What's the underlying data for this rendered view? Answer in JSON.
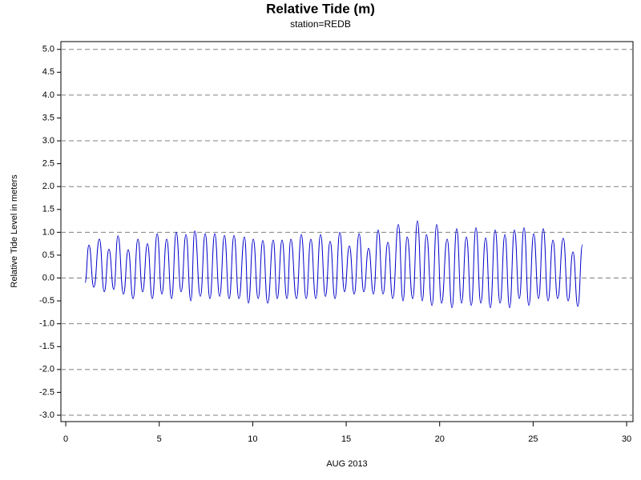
{
  "chart_data": {
    "type": "line",
    "title": "Relative Tide (m)",
    "subtitle": "station=REDB",
    "xlabel": "AUG 2013",
    "ylabel": "Relative Tide Level in meters",
    "xlim": [
      -0.26,
      30.34
    ],
    "ylim": [
      -3.14,
      5.17
    ],
    "xticks": [
      0,
      5,
      10,
      15,
      20,
      25,
      30
    ],
    "yticks": [
      {
        "value": 5,
        "label": "5.0"
      },
      {
        "value": 4.5,
        "label": "4.5"
      },
      {
        "value": 4,
        "label": "4.0"
      },
      {
        "value": 3.5,
        "label": "3.5"
      },
      {
        "value": 3,
        "label": "3.0"
      },
      {
        "value": 2.5,
        "label": "2.5"
      },
      {
        "value": 2,
        "label": "2.0"
      },
      {
        "value": 1.5,
        "label": "1.5"
      },
      {
        "value": 1,
        "label": "1.0"
      },
      {
        "value": 0.5,
        "label": "0.5"
      },
      {
        "value": 0,
        "label": "0.0"
      },
      {
        "value": -0.5,
        "label": "-0.5"
      },
      {
        "value": -1,
        "label": "-1.0"
      },
      {
        "value": -1.5,
        "label": "-1.5"
      },
      {
        "value": -2,
        "label": "-2.0"
      },
      {
        "value": -2.5,
        "label": "-2.5"
      },
      {
        "value": -3,
        "label": "-3.0"
      }
    ],
    "grid": true,
    "x": [
      1.03,
      1.24,
      1.5,
      1.8,
      2.06,
      2.31,
      2.57,
      2.79,
      3.09,
      3.34,
      3.6,
      3.86,
      4.11,
      4.37,
      4.63,
      4.89,
      5.14,
      5.4,
      5.66,
      5.91,
      6.17,
      6.43,
      6.69,
      6.9,
      7.2,
      7.46,
      7.71,
      7.97,
      8.23,
      8.49,
      8.74,
      9.0,
      9.26,
      9.56,
      9.77,
      10.03,
      10.29,
      10.54,
      10.8,
      11.1,
      11.31,
      11.57,
      11.83,
      12.04,
      12.34,
      12.6,
      12.86,
      13.11,
      13.37,
      13.63,
      13.89,
      14.14,
      14.4,
      14.66,
      14.91,
      15.17,
      15.43,
      15.69,
      15.94,
      16.2,
      16.46,
      16.71,
      16.97,
      17.23,
      17.49,
      17.79,
      18.04,
      18.26,
      18.56,
      18.81,
      19.07,
      19.29,
      19.59,
      19.84,
      20.1,
      20.4,
      20.66,
      20.91,
      21.17,
      21.43,
      21.69,
      21.94,
      22.2,
      22.46,
      22.71,
      22.97,
      23.23,
      23.49,
      23.74,
      24.0,
      24.26,
      24.51,
      24.77,
      25.03,
      25.29,
      25.54,
      25.8,
      26.06,
      26.31,
      26.61,
      26.87,
      27.13,
      27.39,
      27.64
    ],
    "series": [
      {
        "name": "Relative Tide",
        "color": "#0000cc",
        "values": [
          -0.1,
          0.72,
          -0.2,
          0.85,
          -0.3,
          0.63,
          -0.25,
          0.92,
          -0.35,
          0.62,
          -0.45,
          0.85,
          -0.3,
          0.75,
          -0.45,
          0.97,
          -0.35,
          0.85,
          -0.45,
          1.0,
          -0.3,
          0.95,
          -0.5,
          1.03,
          -0.4,
          0.97,
          -0.45,
          0.97,
          -0.4,
          0.93,
          -0.45,
          0.93,
          -0.45,
          0.9,
          -0.55,
          0.85,
          -0.45,
          0.82,
          -0.55,
          0.83,
          -0.45,
          0.83,
          -0.45,
          0.85,
          -0.45,
          0.95,
          -0.45,
          0.85,
          -0.45,
          0.95,
          -0.4,
          0.8,
          -0.45,
          1.0,
          -0.3,
          0.7,
          -0.35,
          0.97,
          -0.3,
          0.65,
          -0.35,
          1.05,
          -0.35,
          0.78,
          -0.45,
          1.17,
          -0.5,
          0.9,
          -0.45,
          1.25,
          -0.5,
          0.95,
          -0.6,
          1.17,
          -0.55,
          0.85,
          -0.65,
          1.08,
          -0.55,
          0.9,
          -0.6,
          1.1,
          -0.55,
          0.88,
          -0.65,
          1.05,
          -0.55,
          0.95,
          -0.65,
          1.05,
          -0.45,
          1.1,
          -0.6,
          0.97,
          -0.45,
          1.08,
          -0.5,
          0.83,
          -0.45,
          0.87,
          -0.5,
          0.57,
          -0.62,
          0.73
        ]
      }
    ]
  }
}
